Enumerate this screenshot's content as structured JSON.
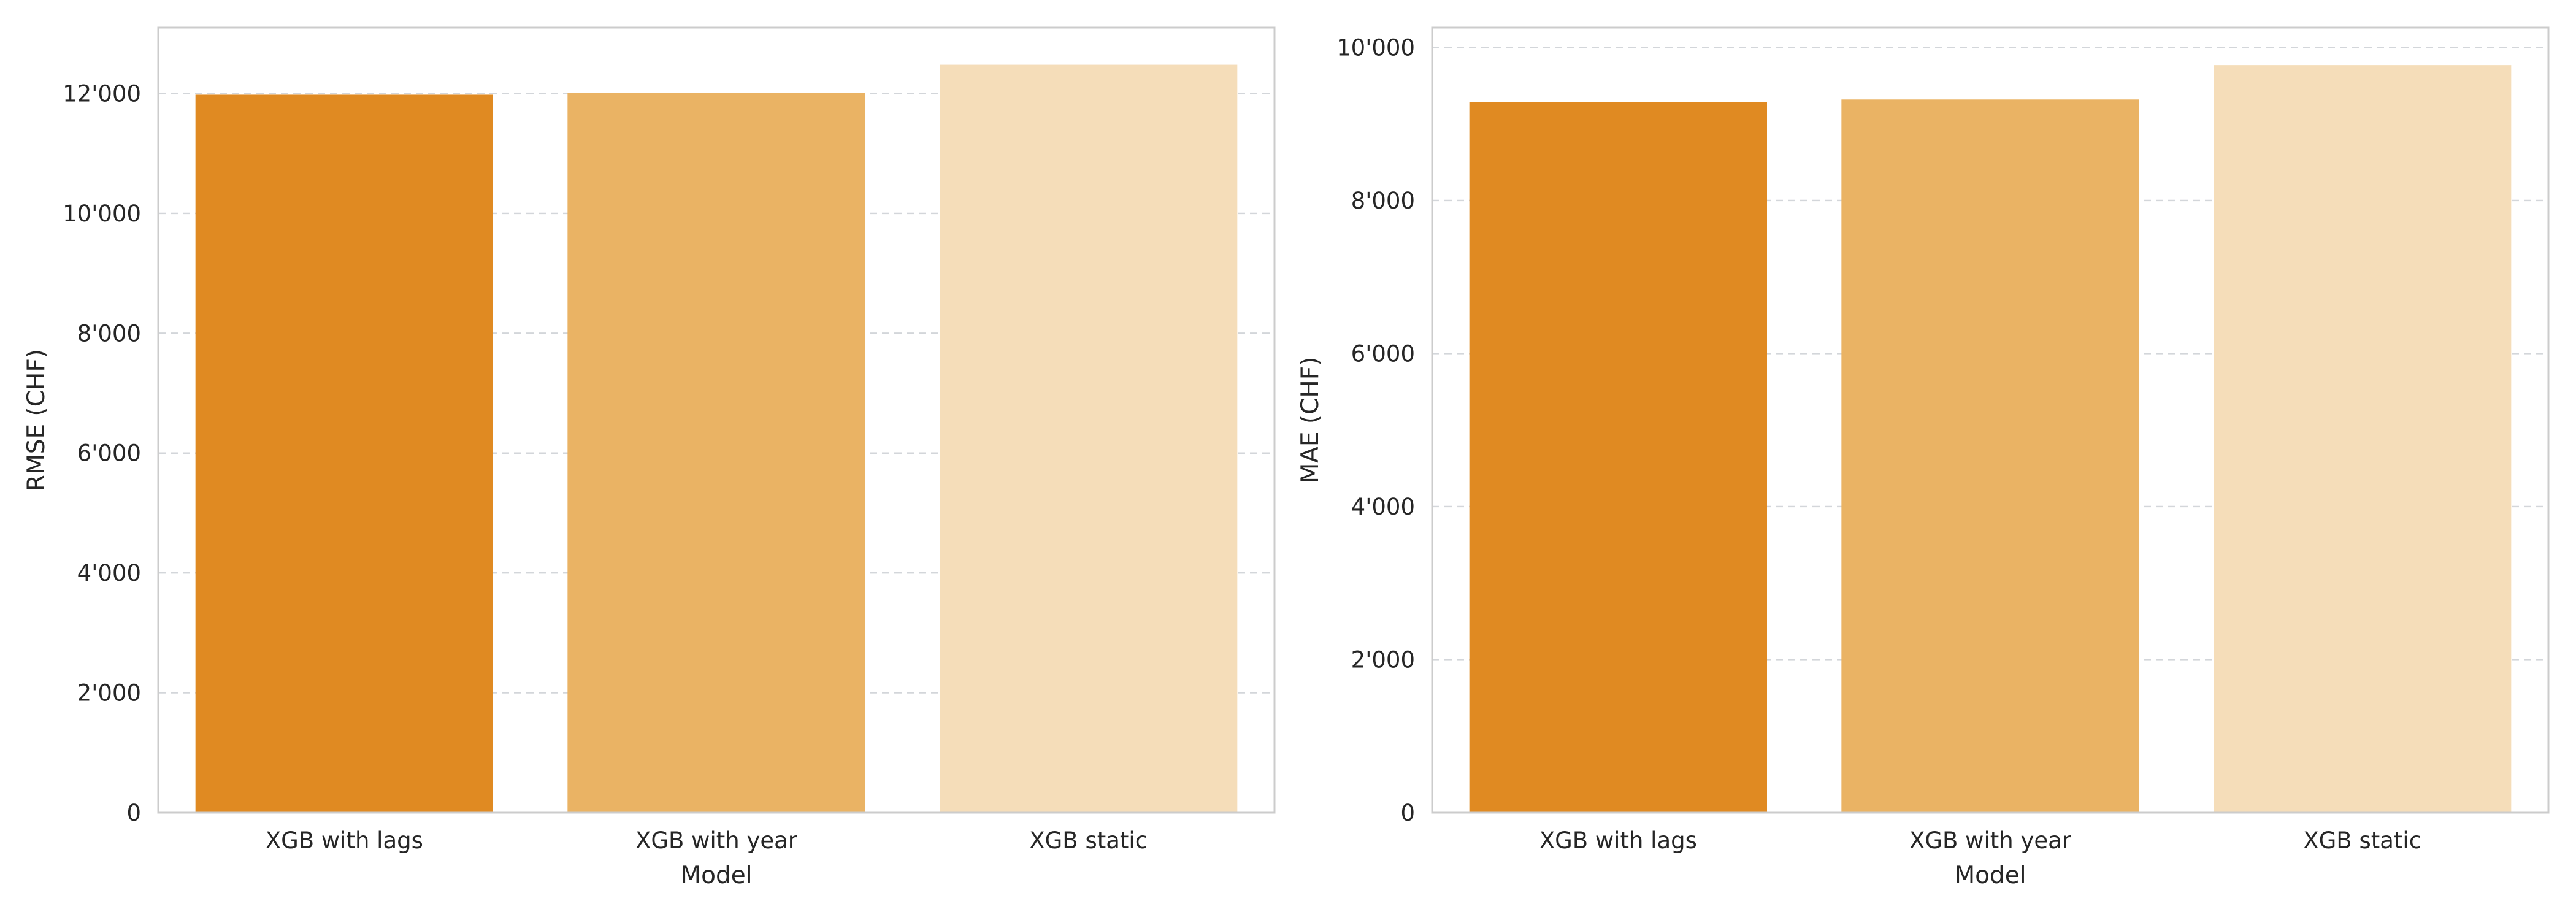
{
  "chart_data": [
    {
      "type": "bar",
      "categories": [
        "XGB with lags",
        "XGB with year",
        "XGB static"
      ],
      "values": [
        11980,
        12010,
        12480
      ],
      "colors": [
        "#e08a22",
        "#eab364",
        "#f5ddb9"
      ],
      "xlabel": "Model",
      "ylabel": "RMSE (CHF)",
      "ylim": [
        0,
        13100
      ],
      "yticks": [
        0,
        2000,
        4000,
        6000,
        8000,
        10000,
        12000
      ],
      "ytick_labels": [
        "0",
        "2'000",
        "4'000",
        "6'000",
        "8'000",
        "10'000",
        "12'000"
      ],
      "grid": "y, dashed"
    },
    {
      "type": "bar",
      "categories": [
        "XGB with lags",
        "XGB with year",
        "XGB static"
      ],
      "values": [
        9290,
        9320,
        9770
      ],
      "colors": [
        "#e08a22",
        "#eab364",
        "#f5ddb9"
      ],
      "xlabel": "Model",
      "ylabel": "MAE (CHF)",
      "ylim": [
        0,
        10260
      ],
      "yticks": [
        0,
        2000,
        4000,
        6000,
        8000,
        10000
      ],
      "ytick_labels": [
        "0",
        "2'000",
        "4'000",
        "6'000",
        "8'000",
        "10'000"
      ],
      "grid": "y, dashed"
    }
  ]
}
